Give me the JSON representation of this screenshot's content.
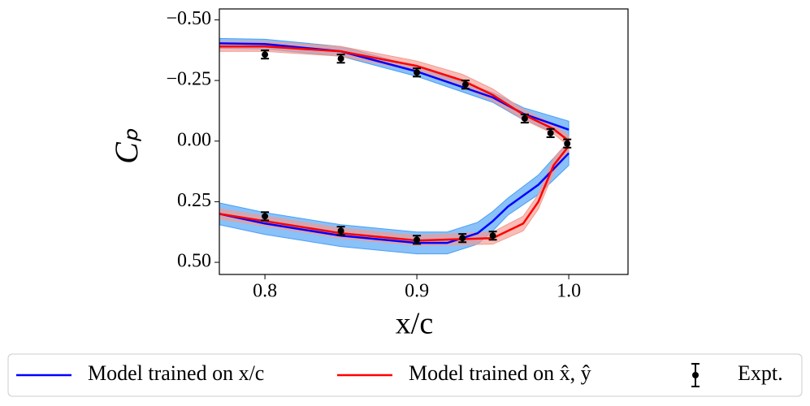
{
  "chart_data": {
    "type": "line",
    "xlabel": "x/c",
    "ylabel": "Cₚ",
    "xlim": [
      0.77,
      1.039
    ],
    "ylim": [
      0.55,
      -0.545
    ],
    "xticks": [
      0.8,
      0.9,
      {
        "value": 1.0,
        "label": "1.0"
      }
    ],
    "yticks": [
      {
        "value": -0.5,
        "label": "−0.50"
      },
      {
        "value": -0.25,
        "label": "−0.25"
      },
      {
        "value": 0,
        "label": "0.00"
      },
      {
        "value": 0.25,
        "label": "0.25"
      },
      {
        "value": 0.5,
        "label": "0.50"
      }
    ],
    "series": [
      {
        "name": "Model trained on x/c",
        "color": "#0000ff",
        "band_color": "#4a9ff5",
        "surfaces": [
          {
            "x": [
              0.77,
              0.8,
              0.85,
              0.9,
              0.95,
              0.97,
              1.0
            ],
            "values": [
              -0.403,
              -0.4,
              -0.37,
              -0.287,
              -0.18,
              -0.113,
              -0.047
            ],
            "band": [
              0.02,
              0.02,
              0.02,
              0.02,
              0.02,
              0.025,
              0.035
            ]
          },
          {
            "x": [
              0.77,
              0.8,
              0.85,
              0.9,
              0.92,
              0.94,
              0.95,
              0.96,
              0.98,
              1.0
            ],
            "values": [
              0.3,
              0.34,
              0.39,
              0.42,
              0.42,
              0.38,
              0.33,
              0.27,
              0.18,
              0.05
            ],
            "band": [
              0.045,
              0.045,
              0.045,
              0.045,
              0.045,
              0.045,
              0.04,
              0.035,
              0.04,
              0.05
            ]
          }
        ]
      },
      {
        "name": "Model trained on x̂, ŷ",
        "color": "#ff0000",
        "band_color": "#f49a8f",
        "surfaces": [
          {
            "x": [
              0.77,
              0.8,
              0.85,
              0.9,
              0.93,
              0.95,
              0.97,
              0.99,
              1.0
            ],
            "values": [
              -0.39,
              -0.39,
              -0.37,
              -0.31,
              -0.25,
              -0.19,
              -0.11,
              -0.05,
              0.0
            ],
            "band": [
              0.02,
              0.02,
              0.02,
              0.02,
              0.025,
              0.025,
              0.02,
              0.02,
              0.02
            ]
          },
          {
            "x": [
              0.77,
              0.8,
              0.85,
              0.9,
              0.95,
              0.97,
              0.98,
              0.99,
              1.0
            ],
            "values": [
              0.3,
              0.33,
              0.38,
              0.41,
              0.4,
              0.34,
              0.25,
              0.1,
              0.02
            ],
            "band": [
              0.02,
              0.02,
              0.02,
              0.02,
              0.025,
              0.03,
              0.03,
              0.03,
              0.02
            ]
          }
        ]
      }
    ],
    "expt": {
      "name": "Expt.",
      "color": "#000000",
      "x": [
        0.8,
        0.85,
        0.9,
        0.932,
        0.971,
        0.988,
        0.999,
        0.8,
        0.85,
        0.9,
        0.93,
        0.95
      ],
      "values": [
        -0.357,
        -0.34,
        -0.283,
        -0.233,
        -0.093,
        -0.033,
        0.01,
        0.31,
        0.37,
        0.407,
        0.4,
        0.39
      ],
      "errors": [
        0.017,
        0.017,
        0.017,
        0.017,
        0.017,
        0.017,
        0.017,
        0.017,
        0.017,
        0.017,
        0.017,
        0.017
      ]
    }
  }
}
